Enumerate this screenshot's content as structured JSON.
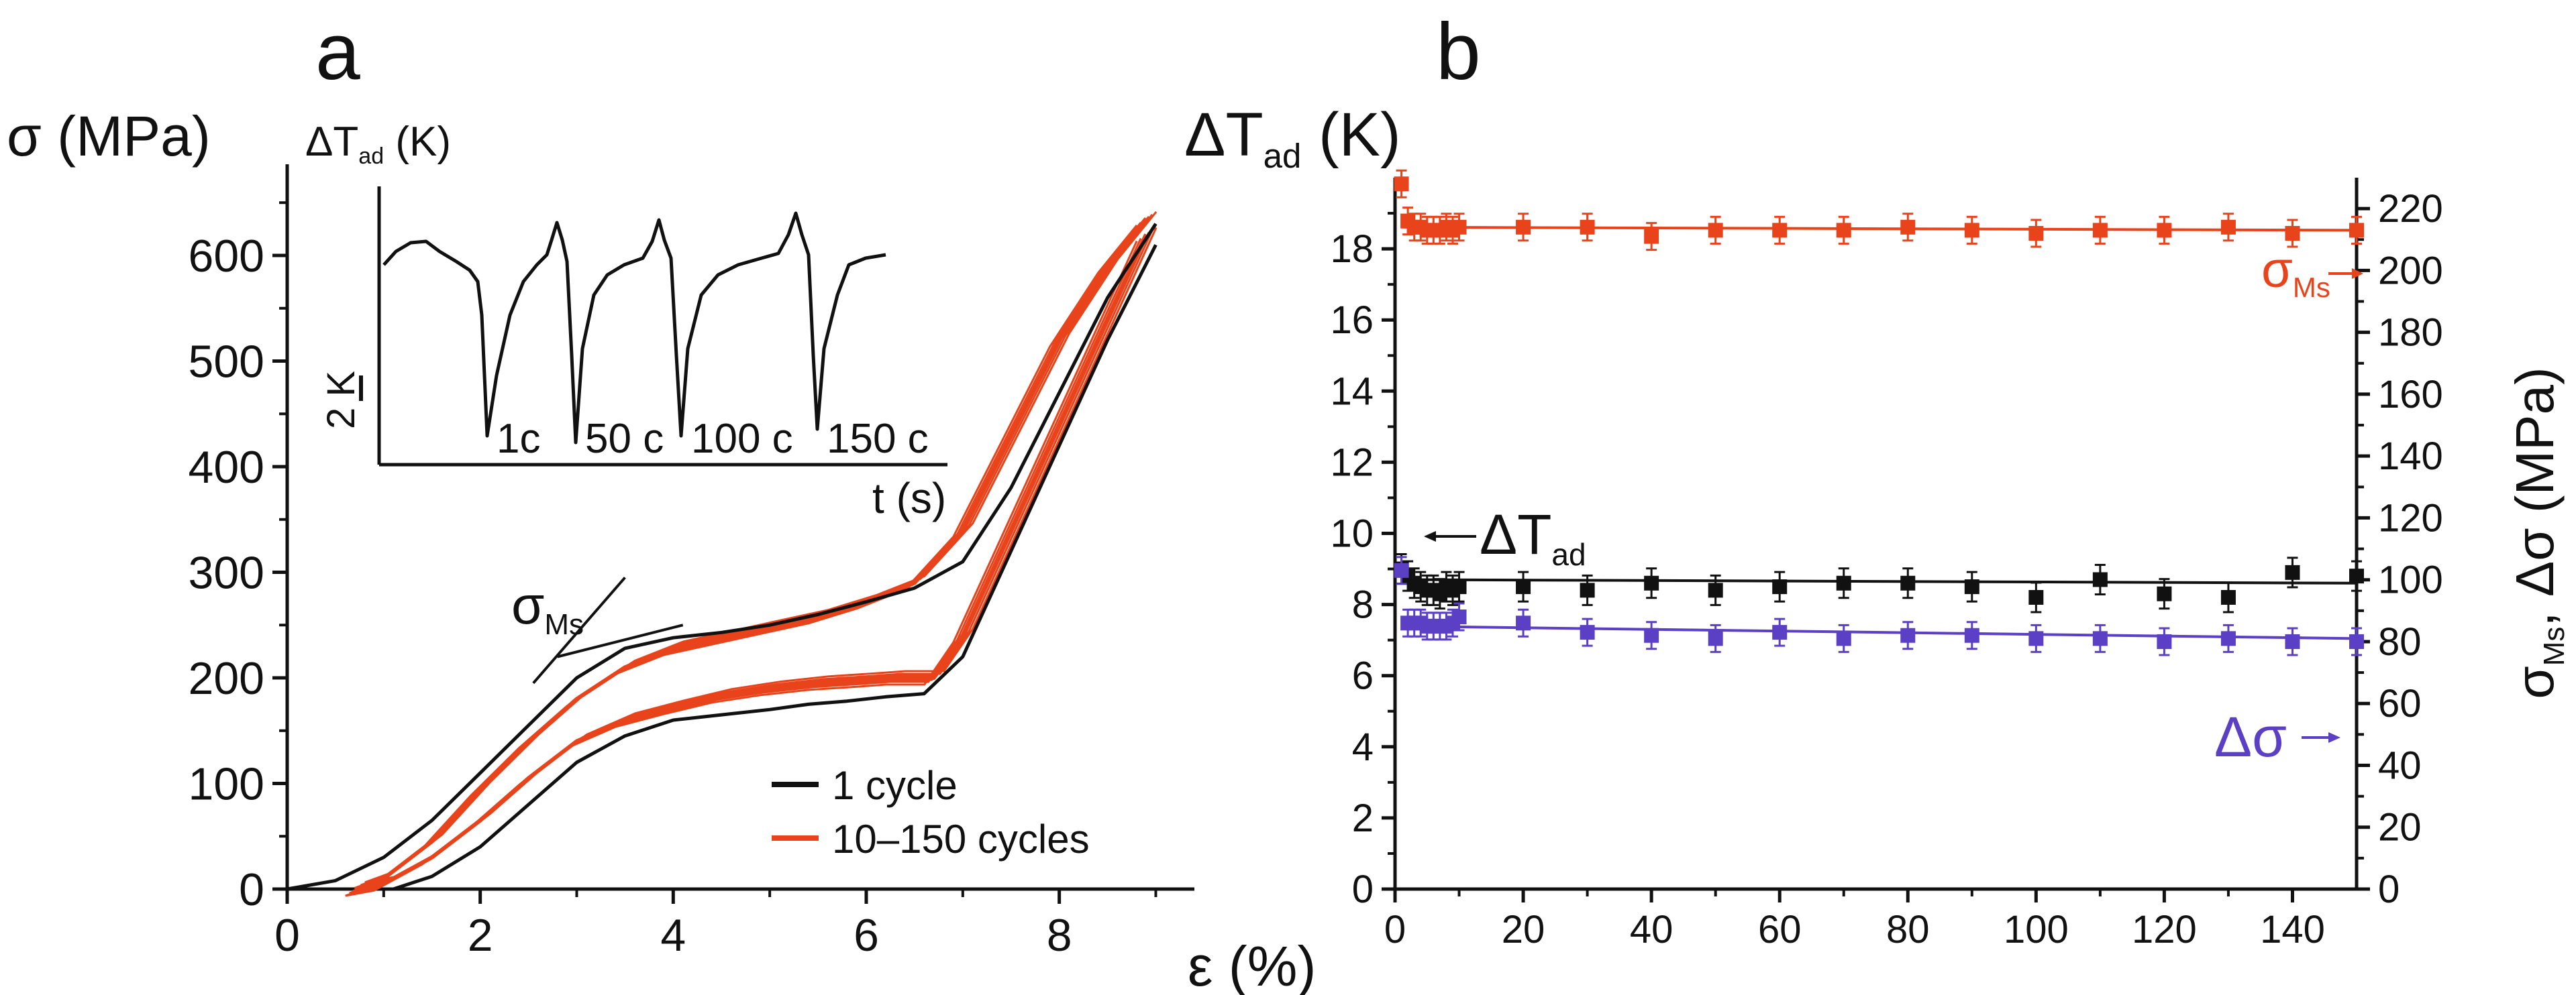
{
  "colors": {
    "one_cycle": "#111111",
    "multi_cycle": "#e8431a",
    "sigma_ms": "#e8431a",
    "delta_t": "#111111",
    "delta_sigma": "#5b3fc4"
  },
  "chart_data": [
    {
      "id": "a",
      "type": "line",
      "panel_label": "a",
      "ylabel": "σ (MPa)",
      "xlabel": "ε (%)",
      "xlim": [
        0,
        9.4
      ],
      "ylim": [
        0,
        680
      ],
      "xticks": [
        0,
        2,
        4,
        6,
        8
      ],
      "yticks": [
        0,
        100,
        200,
        300,
        400,
        500,
        600
      ],
      "annotation": {
        "text": "σ",
        "sub": "Ms"
      },
      "legend": {
        "placement": "bottom-right",
        "entries": [
          "1 cycle",
          "10–150 cycles"
        ]
      },
      "series": [
        {
          "name": "1 cycle",
          "loading": {
            "x": [
              0,
              0.5,
              1,
              1.5,
              2,
              2.5,
              3,
              3.5,
              4,
              4.5,
              5,
              5.5,
              6,
              6.5,
              7,
              7.5,
              8,
              8.5,
              9
            ],
            "y": [
              0,
              8,
              30,
              65,
              110,
              155,
              200,
              228,
              238,
              243,
              250,
              260,
              272,
              285,
              310,
              380,
              470,
              560,
              630
            ]
          },
          "unloading": {
            "x": [
              9,
              8.5,
              8,
              7.5,
              7,
              6.6,
              6.2,
              5.8,
              5.4,
              5,
              4.5,
              4,
              3.5,
              3,
              2.5,
              2,
              1.5,
              1.1
            ],
            "y": [
              610,
              520,
              420,
              320,
              220,
              185,
              182,
              178,
              175,
              170,
              165,
              160,
              145,
              120,
              80,
              40,
              12,
              0
            ]
          }
        },
        {
          "name": "10–150 cycles",
          "loading": {
            "x": [
              0.7,
              1,
              1.5,
              2,
              2.5,
              3,
              3.5,
              4,
              4.5,
              5,
              5.5,
              6,
              6.5,
              7,
              7.5,
              8,
              8.5,
              8.9
            ],
            "y": [
              0,
              10,
              45,
              95,
              140,
              180,
              210,
              228,
              238,
              248,
              258,
              272,
              290,
              340,
              430,
              520,
              590,
              635
            ]
          },
          "unloading": {
            "x": [
              8.9,
              8.5,
              8,
              7.5,
              7,
              6.7,
              6.3,
              6,
              5.5,
              5,
              4.5,
              4,
              3.5,
              3,
              2.5,
              2,
              1.5,
              1,
              0.7
            ],
            "y": [
              620,
              540,
              440,
              340,
              240,
              200,
              200,
              198,
              195,
              190,
              183,
              172,
              160,
              140,
              105,
              65,
              30,
              5,
              0
            ]
          }
        }
      ],
      "inset": {
        "ylabel": "ΔT",
        "ylabel_sub": "ad",
        "ylabel_unit": "(K)",
        "xlabel": "t (s)",
        "scale_label": "2 K",
        "labels": [
          "1c",
          "50 c",
          "100 c",
          "150 c"
        ]
      }
    },
    {
      "id": "b",
      "type": "scatter",
      "panel_label": "b",
      "ylabel": "ΔT",
      "ylabel_sub": "ad",
      "ylabel_unit": "(K)",
      "y2label": "σ",
      "y2label_sub": "Ms",
      "y2label_rest": ", Δσ (MPa)",
      "xlim": [
        0,
        150
      ],
      "ylim": [
        0,
        20
      ],
      "y2lim": [
        0,
        230
      ],
      "xticks": [
        0,
        20,
        40,
        60,
        80,
        100,
        120,
        140
      ],
      "yticks": [
        0,
        2,
        4,
        6,
        8,
        10,
        12,
        14,
        16,
        18
      ],
      "y2ticks": [
        0,
        20,
        40,
        60,
        80,
        100,
        120,
        140,
        160,
        180,
        200,
        220
      ],
      "x": [
        1,
        2,
        3,
        4,
        5,
        6,
        7,
        8,
        9,
        10,
        20,
        30,
        40,
        50,
        60,
        70,
        80,
        90,
        100,
        110,
        120,
        130,
        140,
        150
      ],
      "series": [
        {
          "name": "σMs",
          "label": "σ",
          "label_sub": "Ms",
          "axis": "right",
          "values": [
            228,
            216,
            214,
            214,
            213,
            213,
            213,
            214,
            213,
            214,
            214,
            214,
            211,
            213,
            213,
            213,
            214,
            213,
            212,
            213,
            213,
            214,
            212,
            213
          ],
          "fit": [
            [
              1,
              214
            ],
            [
              150,
              213
            ]
          ]
        },
        {
          "name": "ΔTad",
          "label": "ΔT",
          "label_sub": "ad",
          "axis": "left",
          "values": [
            9.0,
            8.8,
            8.6,
            8.5,
            8.4,
            8.4,
            8.3,
            8.5,
            8.4,
            8.5,
            8.5,
            8.4,
            8.6,
            8.4,
            8.5,
            8.6,
            8.6,
            8.5,
            8.2,
            8.7,
            8.3,
            8.2,
            8.9,
            8.8
          ],
          "fit": [
            [
              1,
              8.7
            ],
            [
              150,
              8.6
            ]
          ]
        },
        {
          "name": "Δσ",
          "label": "Δσ",
          "label_sub": "",
          "axis": "right",
          "values": [
            103,
            86,
            86,
            86,
            85,
            85,
            85,
            85,
            86,
            88,
            86,
            83,
            82,
            81,
            83,
            81,
            82,
            82,
            81,
            81,
            80,
            81,
            80,
            80
          ],
          "fit": [
            [
              1,
              85
            ],
            [
              150,
              81
            ]
          ]
        }
      ]
    }
  ]
}
